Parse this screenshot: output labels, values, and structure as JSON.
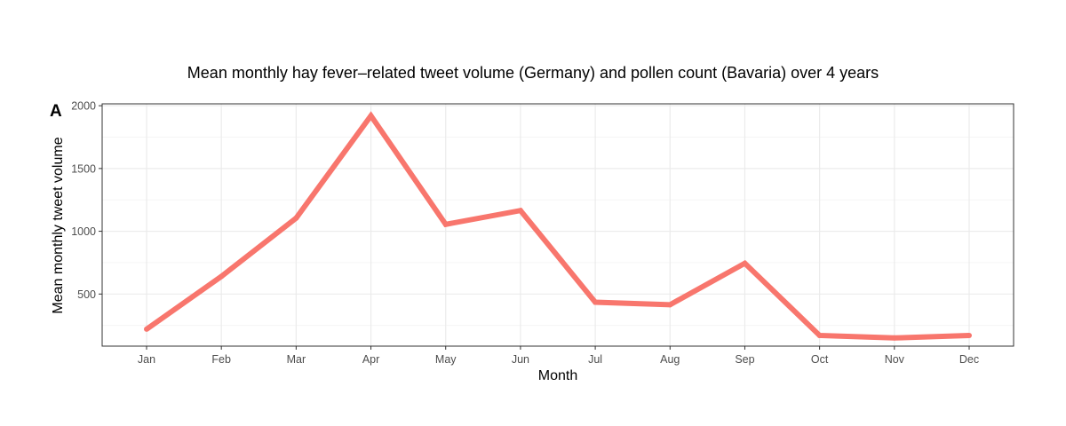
{
  "colors": {
    "series": "#f8766d",
    "grid_major": "#ebebeb",
    "grid_minor": "#f5f5f5",
    "panel_border": "#333333",
    "tick_text": "#4d4d4d"
  },
  "chart_data": {
    "type": "line",
    "title": "Mean monthly hay fever–related tweet volume (Germany) and pollen count (Bavaria) over 4 years",
    "panel_label": "A",
    "xlabel": "Month",
    "ylabel": "Mean monthly tweet volume",
    "categories": [
      "Jan",
      "Feb",
      "Mar",
      "Apr",
      "May",
      "Jun",
      "Jul",
      "Aug",
      "Sep",
      "Oct",
      "Nov",
      "Dec"
    ],
    "series": [
      {
        "values": [
          220,
          640,
          1105,
          1920,
          1055,
          1165,
          435,
          415,
          745,
          170,
          150,
          170
        ]
      }
    ],
    "yticks": [
      500,
      1000,
      1500,
      2000
    ],
    "ylim": [
      85,
      2015
    ],
    "grid": true,
    "legend": "none"
  }
}
